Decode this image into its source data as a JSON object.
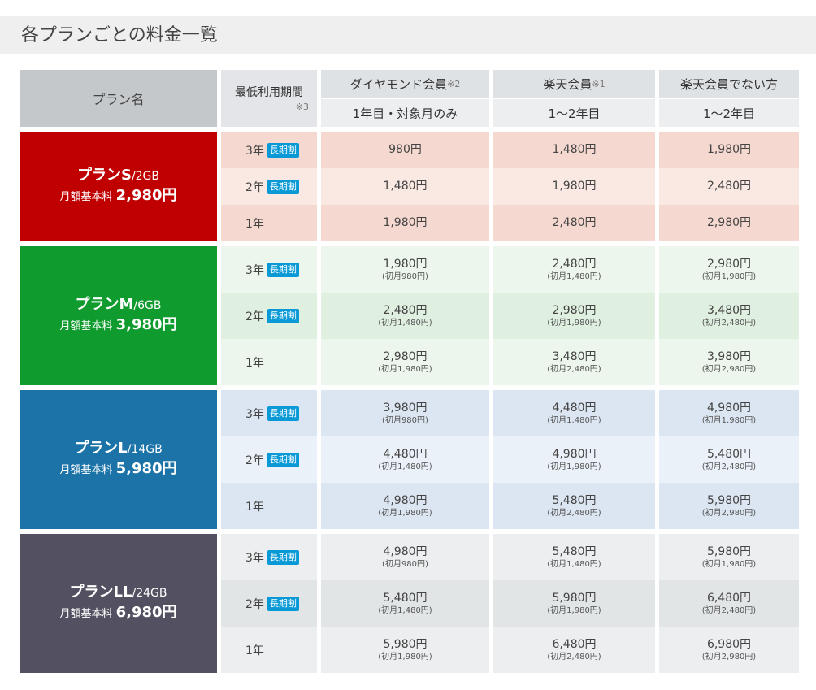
{
  "title": "各プランごとの料金一覧",
  "header": {
    "plan_label": "プラン名",
    "period_label": "最低利用期間",
    "period_note": "※3",
    "columns": [
      {
        "name": "ダイヤモンド会員",
        "note": "※2",
        "sub": "1年目・対象月のみ"
      },
      {
        "name": "楽天会員",
        "note": "※1",
        "sub": "1～2年目"
      },
      {
        "name": "楽天会員でない方",
        "note": "",
        "sub": "1～2年目"
      }
    ]
  },
  "badge_label": "長期割",
  "base_fee_label": "月額基本料",
  "plans": [
    {
      "name": "プランS",
      "gb": "/2GB",
      "price": "2,980円",
      "color": "#c00000",
      "row_colors": [
        "#f5d8cf",
        "#fae8e3"
      ],
      "rows": [
        {
          "period": "3年",
          "badge": true,
          "prices": [
            {
              "main": "980円",
              "first": ""
            },
            {
              "main": "1,480円",
              "first": ""
            },
            {
              "main": "1,980円",
              "first": ""
            }
          ]
        },
        {
          "period": "2年",
          "badge": true,
          "prices": [
            {
              "main": "1,480円",
              "first": ""
            },
            {
              "main": "1,980円",
              "first": ""
            },
            {
              "main": "2,480円",
              "first": ""
            }
          ]
        },
        {
          "period": "1年",
          "badge": false,
          "prices": [
            {
              "main": "1,980円",
              "first": ""
            },
            {
              "main": "2,480円",
              "first": ""
            },
            {
              "main": "2,980円",
              "first": ""
            }
          ]
        }
      ]
    },
    {
      "name": "プランM",
      "gb": "/6GB",
      "price": "3,980円",
      "color": "#0f9b2e",
      "row_colors": [
        "#ecf6ec",
        "#e0f0e0"
      ],
      "rows": [
        {
          "period": "3年",
          "badge": true,
          "prices": [
            {
              "main": "1,980円",
              "first": "(初月980円)"
            },
            {
              "main": "2,480円",
              "first": "(初月1,480円)"
            },
            {
              "main": "2,980円",
              "first": "(初月1,980円)"
            }
          ]
        },
        {
          "period": "2年",
          "badge": true,
          "prices": [
            {
              "main": "2,480円",
              "first": "(初月1,480円)"
            },
            {
              "main": "2,980円",
              "first": "(初月1,980円)"
            },
            {
              "main": "3,480円",
              "first": "(初月2,480円)"
            }
          ]
        },
        {
          "period": "1年",
          "badge": false,
          "prices": [
            {
              "main": "2,980円",
              "first": "(初月1,980円)"
            },
            {
              "main": "3,480円",
              "first": "(初月2,480円)"
            },
            {
              "main": "3,980円",
              "first": "(初月2,980円)"
            }
          ]
        }
      ]
    },
    {
      "name": "プランL",
      "gb": "/14GB",
      "price": "5,980円",
      "color": "#1b73a8",
      "row_colors": [
        "#dce6f2",
        "#ebf1f8"
      ],
      "rows": [
        {
          "period": "3年",
          "badge": true,
          "prices": [
            {
              "main": "3,980円",
              "first": "(初月980円)"
            },
            {
              "main": "4,480円",
              "first": "(初月1,480円)"
            },
            {
              "main": "4,980円",
              "first": "(初月1,980円)"
            }
          ]
        },
        {
          "period": "2年",
          "badge": true,
          "prices": [
            {
              "main": "4,480円",
              "first": "(初月1,480円)"
            },
            {
              "main": "4,980円",
              "first": "(初月1,980円)"
            },
            {
              "main": "5,480円",
              "first": "(初月2,480円)"
            }
          ]
        },
        {
          "period": "1年",
          "badge": false,
          "prices": [
            {
              "main": "4,980円",
              "first": "(初月1,980円)"
            },
            {
              "main": "5,480円",
              "first": "(初月2,480円)"
            },
            {
              "main": "5,980円",
              "first": "(初月2,980円)"
            }
          ]
        }
      ]
    },
    {
      "name": "プランLL",
      "gb": "/24GB",
      "price": "6,980円",
      "color": "#535161",
      "row_colors": [
        "#eceeef",
        "#e1e5e6"
      ],
      "rows": [
        {
          "period": "3年",
          "badge": true,
          "prices": [
            {
              "main": "4,980円",
              "first": "(初月980円)"
            },
            {
              "main": "5,480円",
              "first": "(初月1,480円)"
            },
            {
              "main": "5,980円",
              "first": "(初月1,980円)"
            }
          ]
        },
        {
          "period": "2年",
          "badge": true,
          "prices": [
            {
              "main": "5,480円",
              "first": "(初月1,480円)"
            },
            {
              "main": "5,980円",
              "first": "(初月1,980円)"
            },
            {
              "main": "6,480円",
              "first": "(初月2,480円)"
            }
          ]
        },
        {
          "period": "1年",
          "badge": false,
          "prices": [
            {
              "main": "5,980円",
              "first": "(初月1,980円)"
            },
            {
              "main": "6,480円",
              "first": "(初月2,480円)"
            },
            {
              "main": "6,980円",
              "first": "(初月2,980円)"
            }
          ]
        }
      ]
    }
  ]
}
